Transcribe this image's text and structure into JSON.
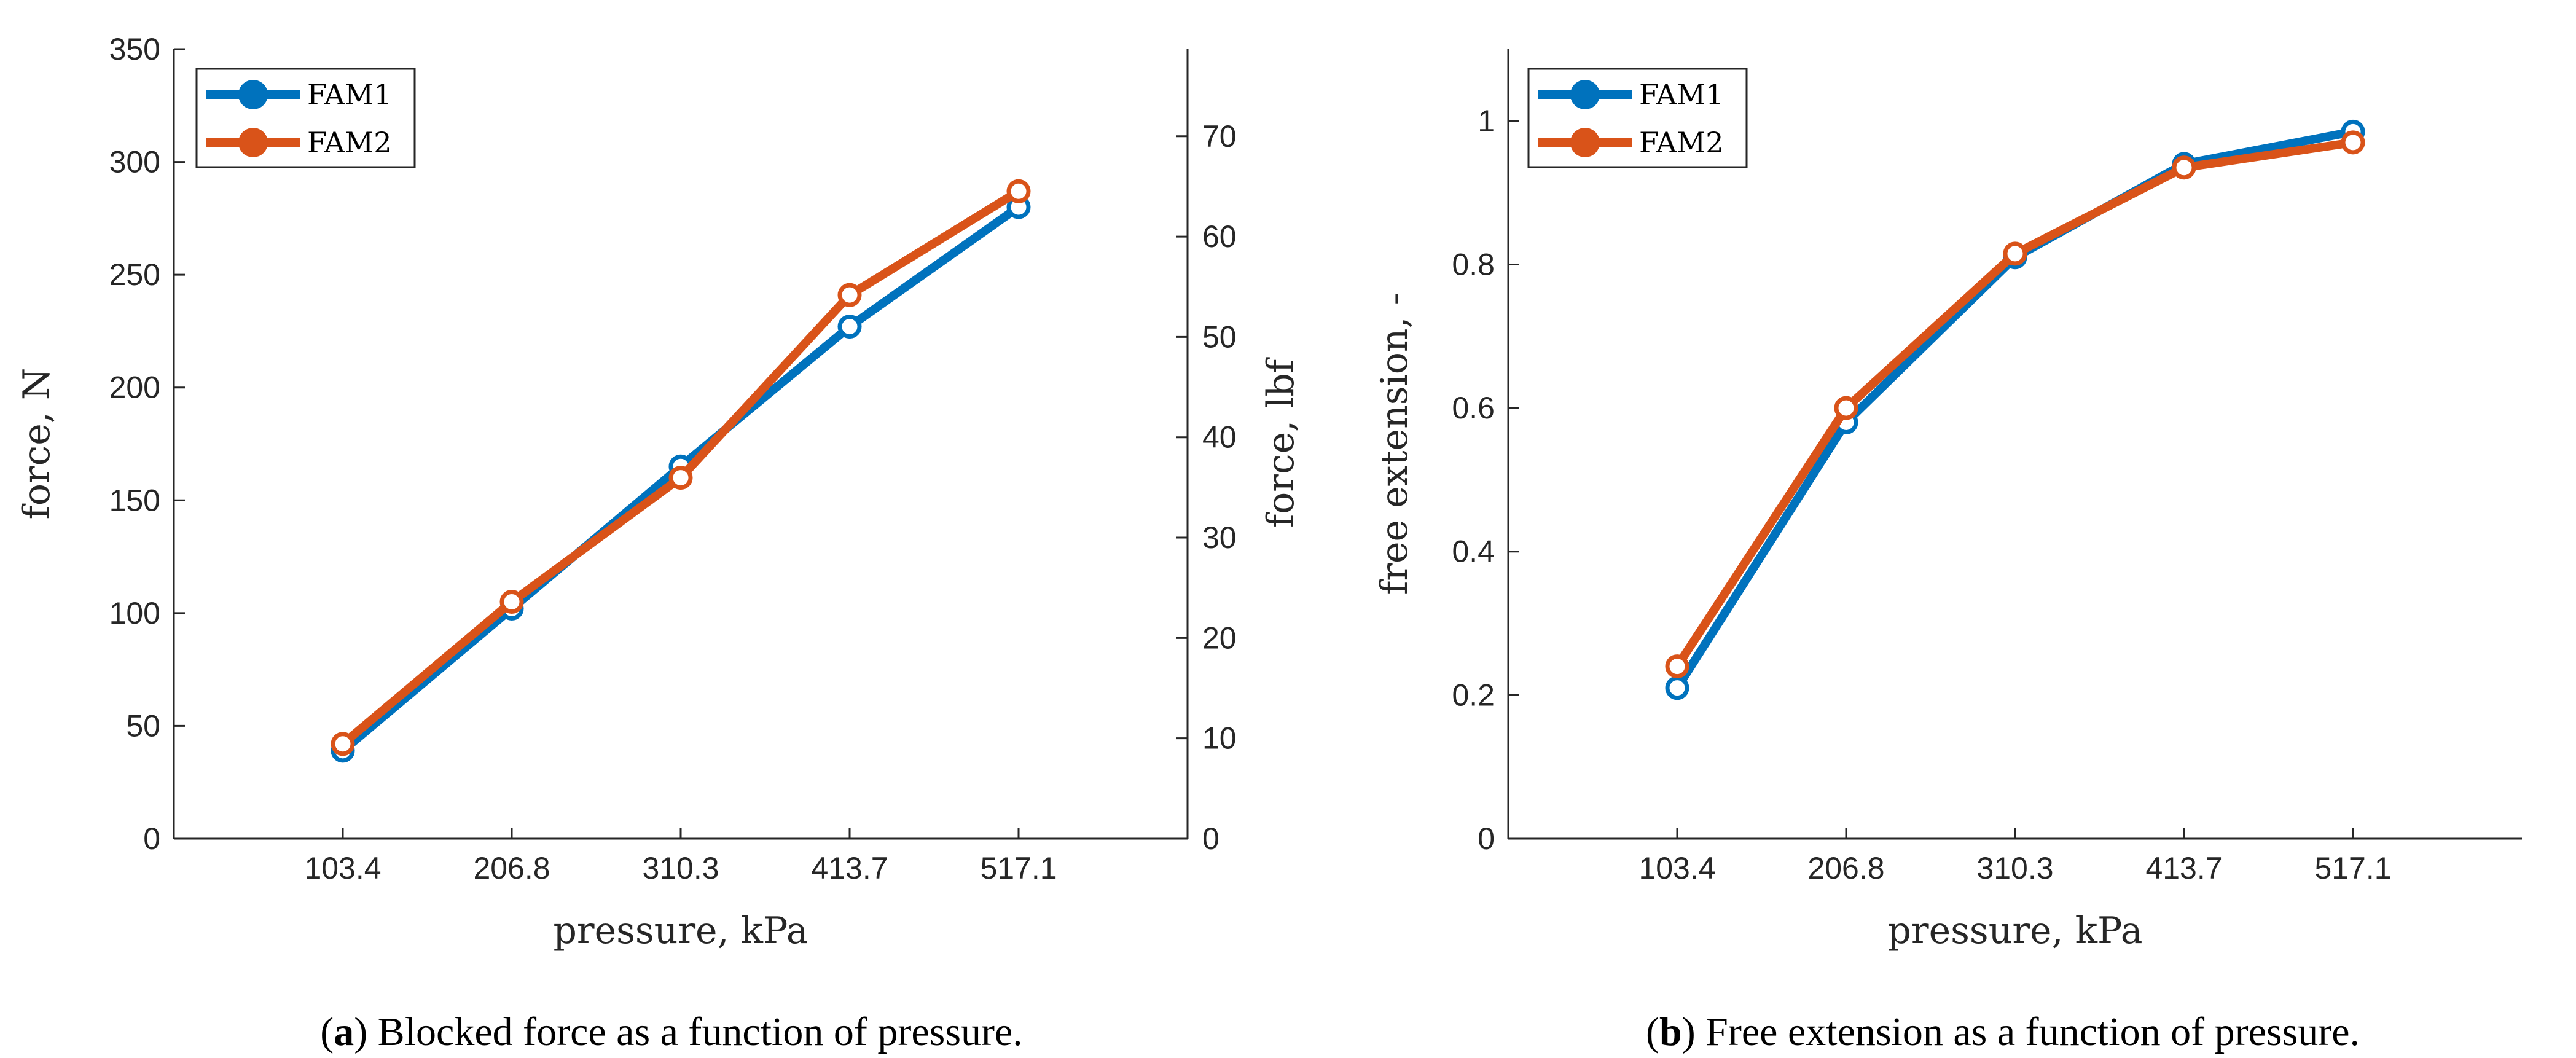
{
  "colors": {
    "FAM1": "#0072BD",
    "FAM2": "#D95319",
    "axis": "#262626"
  },
  "captions": {
    "a": {
      "open": "(",
      "letter": "a",
      "close": ")",
      "text": " Blocked force as a function of pressure."
    },
    "b": {
      "open": "(",
      "letter": "b",
      "close": ")",
      "text": " Free extension as a function of pressure."
    }
  },
  "chart_data": [
    {
      "type": "line",
      "id": "a",
      "title": "",
      "xlabel": "pressure, kPa",
      "ylabel": "force, N",
      "y2label": "force, lbf",
      "categories": [
        "103.4",
        "206.8",
        "310.3",
        "413.7",
        "517.1"
      ],
      "x": [
        1,
        2,
        3,
        4,
        5
      ],
      "xlim": [
        0,
        6
      ],
      "ylim": [
        0,
        350
      ],
      "yticks": [
        0,
        50,
        100,
        150,
        200,
        250,
        300,
        350
      ],
      "ytick_labels": [
        "0",
        "50",
        "100",
        "150",
        "200",
        "250",
        "300",
        "350"
      ],
      "y2lim": [
        0,
        78.68
      ],
      "y2ticks": [
        0,
        10,
        20,
        30,
        40,
        50,
        60,
        70
      ],
      "y2tick_labels": [
        "0",
        "10",
        "20",
        "30",
        "40",
        "50",
        "60",
        "70"
      ],
      "legend": "top-left",
      "grid": false,
      "series": [
        {
          "name": "FAM1",
          "values": [
            39,
            102,
            165,
            227,
            280
          ]
        },
        {
          "name": "FAM2",
          "values": [
            42,
            105,
            160,
            241,
            287
          ]
        }
      ]
    },
    {
      "type": "line",
      "id": "b",
      "title": "",
      "xlabel": "pressure, kPa",
      "ylabel": "free extension, -",
      "categories": [
        "103.4",
        "206.8",
        "310.3",
        "413.7",
        "517.1"
      ],
      "x": [
        1,
        2,
        3,
        4,
        5
      ],
      "xlim": [
        0,
        6
      ],
      "ylim": [
        0,
        1.1
      ],
      "yticks": [
        0,
        0.2,
        0.4,
        0.6,
        0.8,
        1
      ],
      "ytick_labels": [
        "0",
        "0.2",
        "0.4",
        "0.6",
        "0.8",
        "1"
      ],
      "legend": "top-left",
      "grid": false,
      "series": [
        {
          "name": "FAM1",
          "values": [
            0.21,
            0.58,
            0.81,
            0.94,
            0.985
          ]
        },
        {
          "name": "FAM2",
          "values": [
            0.24,
            0.6,
            0.815,
            0.935,
            0.97
          ]
        }
      ]
    }
  ]
}
